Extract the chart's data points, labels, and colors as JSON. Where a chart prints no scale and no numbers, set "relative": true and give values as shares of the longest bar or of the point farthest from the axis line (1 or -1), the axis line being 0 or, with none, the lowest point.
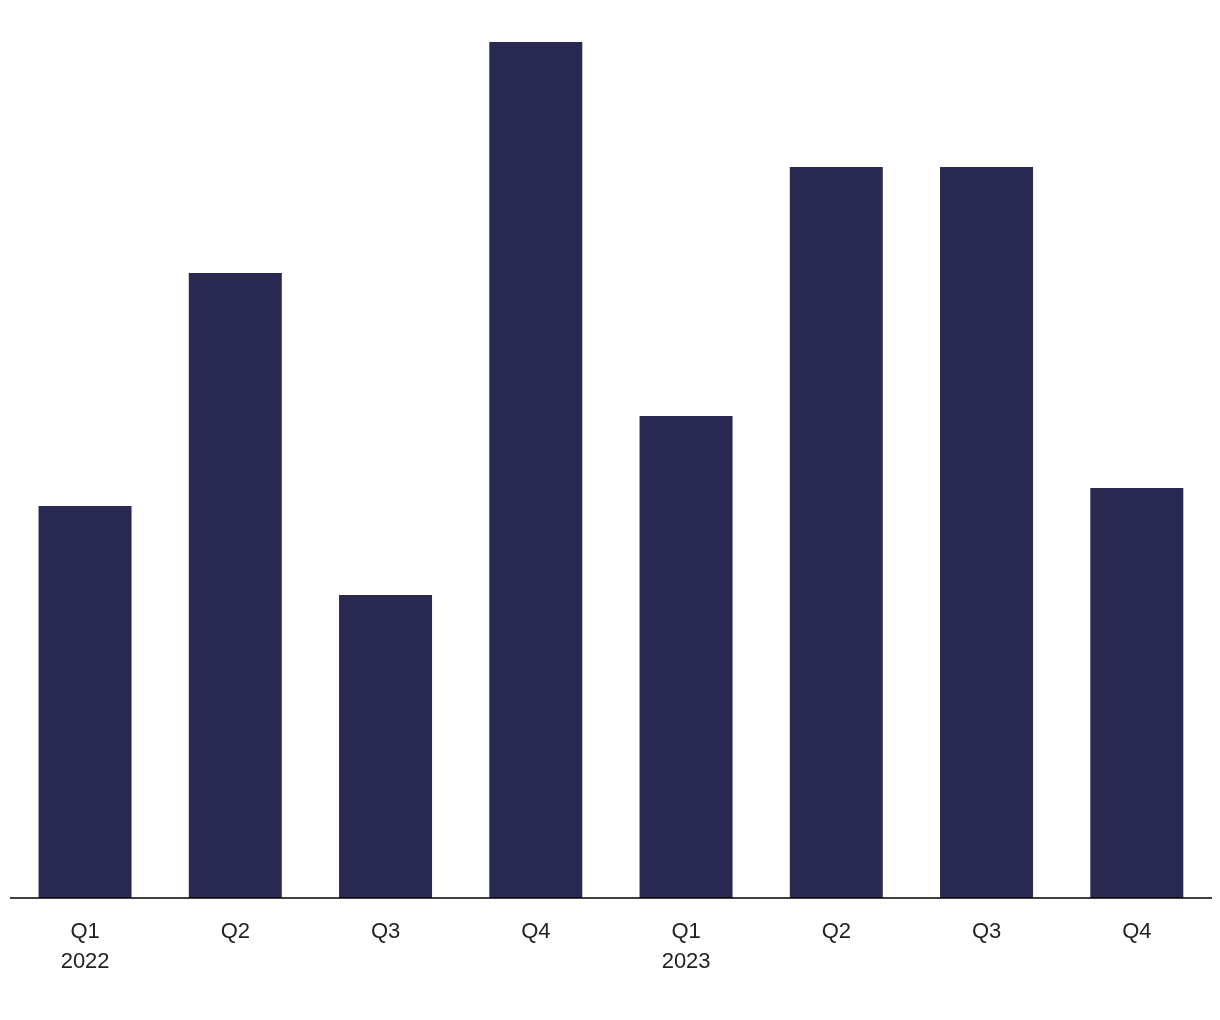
{
  "chart_data": {
    "type": "bar",
    "relative": true,
    "categories": [
      "Q1\n2022",
      "Q2",
      "Q3",
      "Q4",
      "Q1\n2023",
      "Q2",
      "Q3",
      "Q4"
    ],
    "values": [
      0.458,
      0.73,
      0.354,
      1,
      0.563,
      0.854,
      0.854,
      0.479
    ],
    "color": "#282850"
  }
}
